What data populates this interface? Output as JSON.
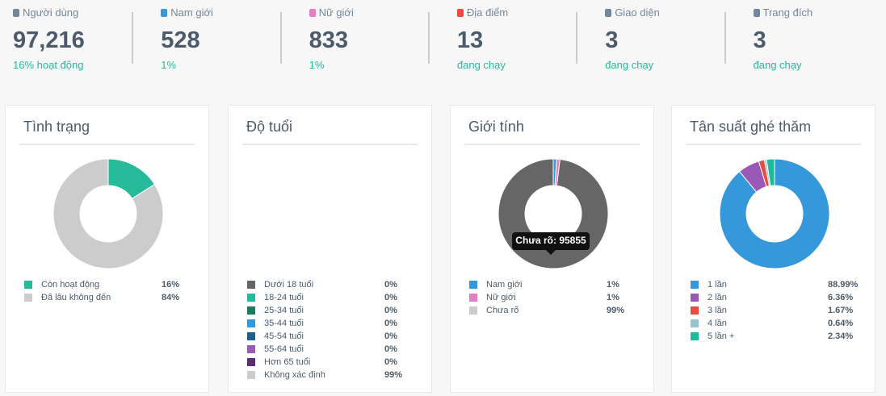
{
  "stats": [
    {
      "label": "Người dùng",
      "value": "97,216",
      "sub": "16% hoạt động"
    },
    {
      "label": "Nam giới",
      "value": "528",
      "sub": "1%"
    },
    {
      "label": "Nữ giới",
      "value": "833",
      "sub": "1%"
    },
    {
      "label": "Địa điểm",
      "value": "13",
      "sub": "đang chạy"
    },
    {
      "label": "Giao diện",
      "value": "3",
      "sub": "đang chạy"
    },
    {
      "label": "Trang đích",
      "value": "3",
      "sub": "đang chạy"
    }
  ],
  "panels": [
    {
      "title": "Tình trạng",
      "items": [
        {
          "name": "Còn hoạt động",
          "color": "#26b99a",
          "value": 16,
          "value_label": "16%"
        },
        {
          "name": "Đã lâu không đến",
          "color": "#cccccc",
          "value": 84,
          "value_label": "84%"
        }
      ]
    },
    {
      "title": "Độ tuổi",
      "items": [
        {
          "name": "Dưới 18 tuổi",
          "color": "#666666",
          "value": 0,
          "value_label": "0%"
        },
        {
          "name": "18-24 tuổi",
          "color": "#26b99a",
          "value": 0,
          "value_label": "0%"
        },
        {
          "name": "25-34 tuổi",
          "color": "#1e7a5e",
          "value": 0,
          "value_label": "0%"
        },
        {
          "name": "35-44 tuổi",
          "color": "#3498db",
          "value": 0,
          "value_label": "0%"
        },
        {
          "name": "45-54 tuổi",
          "color": "#1f5f8b",
          "value": 0,
          "value_label": "0%"
        },
        {
          "name": "55-64 tuổi",
          "color": "#9b59b6",
          "value": 0,
          "value_label": "0%"
        },
        {
          "name": "Hơn 65 tuổi",
          "color": "#5b2c6f",
          "value": 0,
          "value_label": "0%"
        },
        {
          "name": "Không xác định",
          "color": "#cccccc",
          "value": 99,
          "value_label": "99%"
        }
      ]
    },
    {
      "title": "Giới tính",
      "active_index": 2,
      "active_color": "#666666",
      "tooltip": "Chưa rõ: 95855",
      "items": [
        {
          "name": "Nam giới",
          "color": "#3498db",
          "value": 1,
          "value_label": "1%"
        },
        {
          "name": "Nữ giới",
          "color": "#e67ec4",
          "value": 1,
          "value_label": "1%"
        },
        {
          "name": "Chưa rõ",
          "color": "#cccccc",
          "value": 99,
          "value_label": "99%"
        }
      ]
    },
    {
      "title": "Tân suất ghé thăm",
      "items": [
        {
          "name": "1 lần",
          "color": "#3498db",
          "value": 88.99,
          "value_label": "88.99%"
        },
        {
          "name": "2 lần",
          "color": "#9b59b6",
          "value": 6.36,
          "value_label": "6.36%"
        },
        {
          "name": "3 lần",
          "color": "#e74c3c",
          "value": 1.67,
          "value_label": "1.67%"
        },
        {
          "name": "4 lần",
          "color": "#95c4cf",
          "value": 0.64,
          "value_label": "0.64%"
        },
        {
          "name": "5 lần +",
          "color": "#1abc9c",
          "value": 2.34,
          "value_label": "2.34%"
        }
      ]
    }
  ]
}
